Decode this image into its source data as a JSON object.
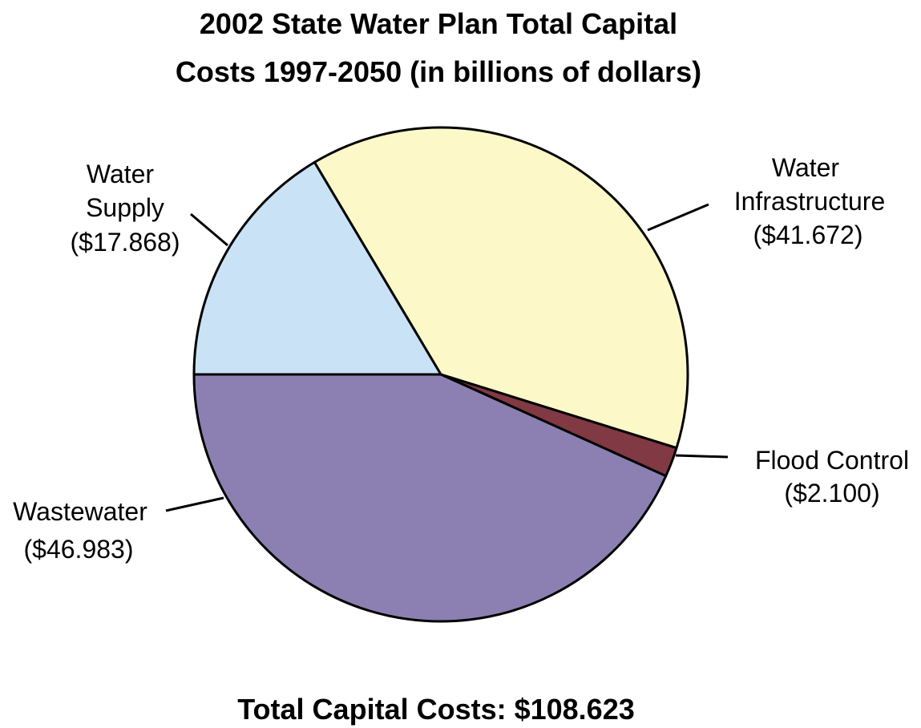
{
  "chart_data": {
    "type": "pie",
    "title_lines": [
      "2002 State Water Plan Total Capital",
      "Costs 1997-2050 (in billions of dollars)"
    ],
    "slices": [
      {
        "label_lines": [
          "Water",
          "Infrastructure",
          "($41.672)"
        ],
        "name": "Water Infrastructure",
        "value": 41.672,
        "color": "#fcf8c8"
      },
      {
        "label_lines": [
          "Flood Control",
          "($2.100)"
        ],
        "name": "Flood Control",
        "value": 2.1,
        "color": "#813943"
      },
      {
        "label_lines": [
          "Wastewater",
          "($46.983)"
        ],
        "name": "Wastewater",
        "value": 46.983,
        "color": "#8c80b2"
      },
      {
        "label_lines": [
          "Water",
          "Supply",
          "($17.868)"
        ],
        "name": "Water Supply",
        "value": 17.868,
        "color": "#c9e2f5"
      }
    ],
    "total_label": "Total Capital Costs: $108.623",
    "legend": "none (callout labels with leader lines)"
  }
}
